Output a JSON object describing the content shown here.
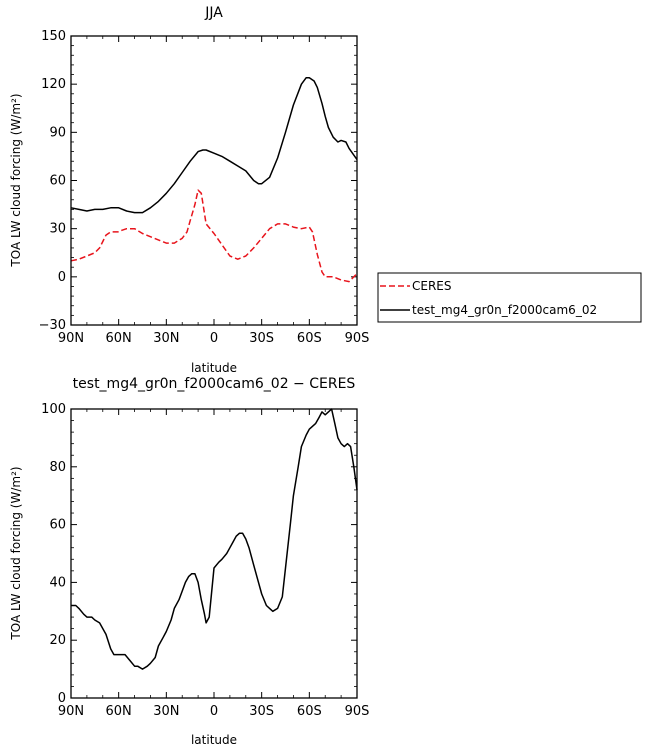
{
  "chart_data": [
    {
      "type": "line",
      "title": "JJA",
      "xlabel": "latitude",
      "ylabel": "TOA LW cloud forcing (W/m²)",
      "xlim": [
        90,
        -90
      ],
      "ylim": [
        -30,
        150
      ],
      "xticks": [
        {
          "value": 90,
          "label": "90N"
        },
        {
          "value": 60,
          "label": "60N"
        },
        {
          "value": 30,
          "label": "30N"
        },
        {
          "value": 0,
          "label": "0"
        },
        {
          "value": -30,
          "label": "30S"
        },
        {
          "value": -60,
          "label": "60S"
        },
        {
          "value": -90,
          "label": "90S"
        }
      ],
      "yticks": [
        {
          "value": -30,
          "label": "−30"
        },
        {
          "value": 0,
          "label": "0"
        },
        {
          "value": 30,
          "label": "30"
        },
        {
          "value": 60,
          "label": "60"
        },
        {
          "value": 90,
          "label": "90"
        },
        {
          "value": 120,
          "label": "120"
        },
        {
          "value": 150,
          "label": "150"
        }
      ],
      "legend_position": "right",
      "series": [
        {
          "name": "CERES",
          "color": "#e8141c",
          "dash": true,
          "x": [
            90,
            85,
            80,
            75,
            72,
            70,
            68,
            65,
            62,
            60,
            58,
            55,
            50,
            45,
            40,
            35,
            30,
            25,
            20,
            17,
            15,
            12,
            10,
            8,
            5,
            0,
            -5,
            -10,
            -15,
            -20,
            -25,
            -30,
            -35,
            -40,
            -45,
            -50,
            -55,
            -60,
            -62,
            -65,
            -68,
            -70,
            -75,
            -80,
            -85,
            -90
          ],
          "y": [
            10,
            11,
            13,
            15,
            18,
            22,
            26,
            28,
            28,
            28,
            29,
            30,
            30,
            27,
            25,
            23,
            21,
            21,
            24,
            28,
            35,
            45,
            54,
            52,
            33,
            27,
            20,
            13,
            11,
            13,
            18,
            24,
            30,
            33,
            33,
            31,
            30,
            31,
            28,
            14,
            3,
            0,
            0,
            -2,
            -3,
            2
          ]
        },
        {
          "name": "test_mg4_gr0n_f2000cam6_02",
          "color": "#000000",
          "dash": false,
          "x": [
            90,
            85,
            80,
            75,
            70,
            65,
            60,
            55,
            50,
            45,
            40,
            35,
            30,
            25,
            20,
            15,
            10,
            7,
            5,
            0,
            -5,
            -10,
            -15,
            -20,
            -25,
            -28,
            -30,
            -35,
            -40,
            -45,
            -50,
            -55,
            -58,
            -60,
            -63,
            -65,
            -68,
            -70,
            -72,
            -75,
            -78,
            -80,
            -83,
            -85,
            -90
          ],
          "y": [
            43,
            42,
            41,
            42,
            42,
            43,
            43,
            41,
            40,
            40,
            43,
            47,
            52,
            58,
            65,
            72,
            78,
            79,
            79,
            77,
            75,
            72,
            69,
            66,
            60,
            58,
            58,
            62,
            74,
            90,
            107,
            120,
            124,
            124,
            122,
            118,
            108,
            100,
            93,
            87,
            84,
            85,
            84,
            80,
            73
          ]
        }
      ]
    },
    {
      "type": "line",
      "title": "test_mg4_gr0n_f2000cam6_02 − CERES",
      "xlabel": "latitude",
      "ylabel": "TOA LW cloud forcing (W/m²)",
      "xlim": [
        90,
        -90
      ],
      "ylim": [
        0,
        100
      ],
      "xticks": [
        {
          "value": 90,
          "label": "90N"
        },
        {
          "value": 60,
          "label": "60N"
        },
        {
          "value": 30,
          "label": "30N"
        },
        {
          "value": 0,
          "label": "0"
        },
        {
          "value": -30,
          "label": "30S"
        },
        {
          "value": -60,
          "label": "60S"
        },
        {
          "value": -90,
          "label": "90S"
        }
      ],
      "yticks": [
        {
          "value": 0,
          "label": "0"
        },
        {
          "value": 20,
          "label": "20"
        },
        {
          "value": 40,
          "label": "40"
        },
        {
          "value": 60,
          "label": "60"
        },
        {
          "value": 80,
          "label": "80"
        },
        {
          "value": 100,
          "label": "100"
        }
      ],
      "series": [
        {
          "color": "#000000",
          "dash": false,
          "x": [
            90,
            87,
            85,
            82,
            80,
            77,
            75,
            72,
            70,
            68,
            65,
            63,
            60,
            58,
            56,
            53,
            50,
            48,
            45,
            42,
            40,
            37,
            35,
            32,
            30,
            27,
            25,
            22,
            20,
            18,
            16,
            14,
            12,
            10,
            8,
            6,
            5,
            3,
            0,
            -3,
            -5,
            -8,
            -10,
            -12,
            -14,
            -16,
            -18,
            -20,
            -22,
            -25,
            -28,
            -30,
            -33,
            -35,
            -37,
            -40,
            -43,
            -45,
            -48,
            -50,
            -53,
            -55,
            -58,
            -60,
            -62,
            -64,
            -66,
            -68,
            -70,
            -72,
            -74,
            -76,
            -78,
            -80,
            -82,
            -84,
            -86,
            -88,
            -90
          ],
          "y": [
            32,
            32,
            31,
            29,
            28,
            28,
            27,
            26,
            24,
            22,
            17,
            15,
            15,
            15,
            15,
            13,
            11,
            11,
            10,
            11,
            12,
            14,
            18,
            21,
            23,
            27,
            31,
            34,
            37,
            40,
            42,
            43,
            43,
            40,
            34,
            29,
            26,
            28,
            45,
            47,
            48,
            50,
            52,
            54,
            56,
            57,
            57,
            55,
            52,
            46,
            40,
            36,
            32,
            31,
            30,
            31,
            35,
            45,
            60,
            70,
            80,
            87,
            91,
            93,
            94,
            95,
            97,
            99,
            98,
            99,
            100,
            95,
            90,
            88,
            87,
            88,
            87,
            80,
            72
          ]
        }
      ]
    }
  ]
}
